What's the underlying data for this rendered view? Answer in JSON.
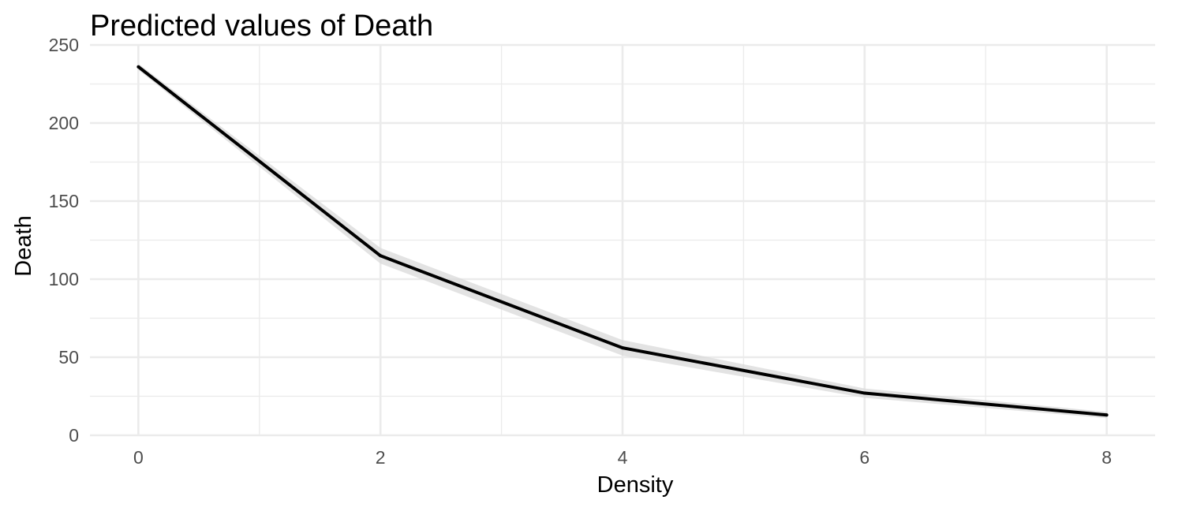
{
  "chart_data": {
    "type": "line",
    "title": "Predicted values of Death",
    "xlabel": "Density",
    "ylabel": "Death",
    "xlim": [
      -0.4,
      8.4
    ],
    "ylim": [
      0,
      250
    ],
    "x_ticks": [
      "0",
      "2",
      "4",
      "6",
      "8"
    ],
    "y_ticks": [
      "0",
      "50",
      "100",
      "150",
      "200",
      "250"
    ],
    "grid": true,
    "legend": "none",
    "series": [
      {
        "x": [
          0,
          2,
          4,
          6,
          8
        ],
        "y": [
          236,
          115,
          56,
          27,
          13
        ],
        "conf_low": [
          234,
          110,
          51,
          24,
          11
        ],
        "conf_high": [
          238,
          120,
          61,
          30,
          15
        ]
      }
    ],
    "colors": {
      "line": "#000000",
      "ribbon": "#d9d9d9",
      "grid": "#ebebeb",
      "tick_text": "#4d4d4d"
    }
  }
}
